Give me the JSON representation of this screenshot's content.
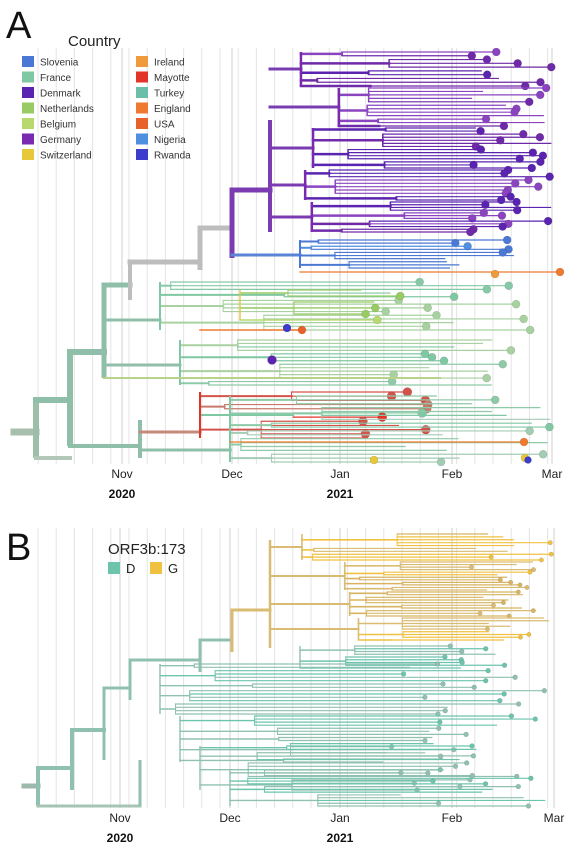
{
  "panels": [
    {
      "id": "A",
      "letter": "A",
      "legend_title": "Country",
      "legend": [
        {
          "label": "Slovenia",
          "color": "#4a78d4"
        },
        {
          "label": "France",
          "color": "#7fc8a3"
        },
        {
          "label": "Denmark",
          "color": "#5a24b0"
        },
        {
          "label": "Netherlands",
          "color": "#98cc63"
        },
        {
          "label": "Belgium",
          "color": "#b8d870"
        },
        {
          "label": "Germany",
          "color": "#7a2ab0"
        },
        {
          "label": "Switzerland",
          "color": "#e6c83a"
        },
        {
          "label": "Ireland",
          "color": "#ef9a3c"
        },
        {
          "label": "Mayotte",
          "color": "#e3342a"
        },
        {
          "label": "Turkey",
          "color": "#6bbfa8"
        },
        {
          "label": "England",
          "color": "#ef7a2f"
        },
        {
          "label": "USA",
          "color": "#e8602a"
        },
        {
          "label": "Nigeria",
          "color": "#4f8fe0"
        },
        {
          "label": "Rwanda",
          "color": "#3d3ccc"
        }
      ],
      "months": [
        "Nov",
        "Dec",
        "Jan",
        "Feb",
        "Mar"
      ],
      "years": [
        "2020",
        "2021"
      ]
    },
    {
      "id": "B",
      "letter": "B",
      "legend_title": "ORF3b:173",
      "legend": [
        {
          "label": "D",
          "color": "#6cc4ad"
        },
        {
          "label": "G",
          "color": "#f0c040"
        }
      ],
      "months": [
        "Nov",
        "Dec",
        "Jan",
        "Feb",
        "Mar"
      ],
      "years": [
        "2020",
        "2021"
      ]
    }
  ]
}
